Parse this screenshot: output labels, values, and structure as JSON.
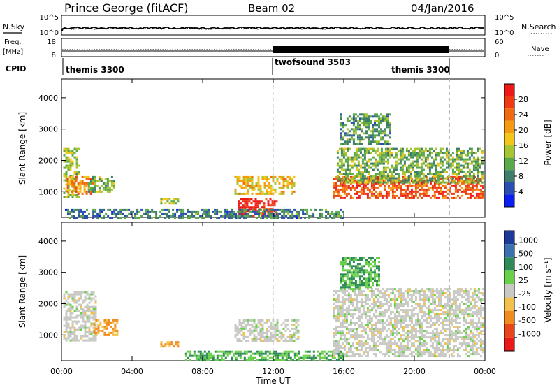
{
  "header": {
    "station": "Prince George (fitACF)",
    "beam": "Beam 02",
    "date": "04/Jan/2016"
  },
  "top_panels": {
    "nsky_label": "N.Sky",
    "nsearch_label": "N.Search",
    "noise_ticks": [
      "10^5",
      "10^0"
    ],
    "freq_label_1": "Freq.",
    "freq_label_2": "[MHz]",
    "freq_ticks": [
      "18",
      "8"
    ],
    "nave_label": "Nave",
    "nave_ticks": [
      "60",
      "0"
    ],
    "cpid_label": "CPID",
    "cpid_segments": [
      {
        "name": "themis 3300",
        "start_hour": 0,
        "end_hour": 12
      },
      {
        "name": "twofsound 3503",
        "start_hour": 12,
        "end_hour": 22
      },
      {
        "name": "themis 3300",
        "start_hour": 22,
        "end_hour": 24
      }
    ]
  },
  "time_axis": {
    "title": "Time UT",
    "ticks": [
      "00:00",
      "04:00",
      "08:00",
      "12:00",
      "16:00",
      "20:00",
      "00:00"
    ]
  },
  "range_axis": {
    "title": "Slant Range [km]",
    "ticks": [
      "1000",
      "2000",
      "3000",
      "4000"
    ]
  },
  "power_scale": {
    "title": "Power [dB]",
    "labels": [
      "4",
      "8",
      "12",
      "16",
      "20",
      "24",
      "28"
    ],
    "colors": [
      "#0a1ef0",
      "#2a4fb0",
      "#3e7d6a",
      "#59a84a",
      "#a9c431",
      "#f3c61c",
      "#f59a13",
      "#f06a10",
      "#ef3a14",
      "#ee1a1a"
    ]
  },
  "velocity_scale": {
    "title": "Velocity [m s⁻¹]",
    "labels": [
      "1000",
      "500",
      "100",
      "25",
      "-25",
      "-100",
      "-500",
      "-1000"
    ],
    "colors": [
      "#1d3a9a",
      "#3a6fb0",
      "#2e8b57",
      "#6ad04a",
      "#c8c8c4",
      "#f1c14b",
      "#f08c1e",
      "#e8451b",
      "#e81a1a"
    ]
  },
  "chart_data": [
    {
      "type": "heatmap",
      "title": "Power",
      "xlabel": "Time UT",
      "ylabel": "Slant Range [km]",
      "xlim": [
        0,
        24
      ],
      "ylim": [
        180,
        4600
      ],
      "zlabel": "Power [dB]",
      "zlim": [
        0,
        32
      ],
      "regions": [
        {
          "t0": 0.1,
          "t1": 1.0,
          "r0": 800,
          "r1": 2400,
          "power": 14
        },
        {
          "t0": 0.3,
          "t1": 1.8,
          "r0": 900,
          "r1": 1500,
          "power": 22
        },
        {
          "t0": 1.5,
          "t1": 3.0,
          "r0": 1000,
          "r1": 1500,
          "power": 12
        },
        {
          "t0": 5.6,
          "t1": 6.6,
          "r0": 600,
          "r1": 800,
          "power": 14
        },
        {
          "t0": 9.8,
          "t1": 13.2,
          "r0": 900,
          "r1": 1500,
          "power": 18
        },
        {
          "t0": 10.0,
          "t1": 12.2,
          "r0": 200,
          "r1": 800,
          "power": 30
        },
        {
          "t0": 0.2,
          "t1": 16.0,
          "r0": 180,
          "r1": 450,
          "power": 8
        },
        {
          "t0": 15.4,
          "t1": 23.9,
          "r0": 800,
          "r1": 1500,
          "power": 26
        },
        {
          "t0": 15.6,
          "t1": 23.9,
          "r0": 1300,
          "r1": 2400,
          "power": 12
        },
        {
          "t0": 15.8,
          "t1": 18.6,
          "r0": 2500,
          "r1": 3500,
          "power": 10
        }
      ]
    },
    {
      "type": "heatmap",
      "title": "Velocity",
      "xlabel": "Time UT",
      "ylabel": "Slant Range [km]",
      "xlim": [
        0,
        24
      ],
      "ylim": [
        180,
        4600
      ],
      "zlabel": "Velocity [m s⁻¹]",
      "zlim": [
        -1000,
        1000
      ],
      "regions": [
        {
          "t0": 0.1,
          "t1": 2.0,
          "r0": 800,
          "r1": 2400,
          "velocity": 0
        },
        {
          "t0": 1.8,
          "t1": 3.2,
          "r0": 1000,
          "r1": 1500,
          "velocity": -100
        },
        {
          "t0": 5.6,
          "t1": 6.6,
          "r0": 600,
          "r1": 800,
          "velocity": -100
        },
        {
          "t0": 9.8,
          "t1": 13.4,
          "r0": 800,
          "r1": 1500,
          "velocity": 0
        },
        {
          "t0": 7.0,
          "t1": 16.0,
          "r0": 180,
          "r1": 500,
          "velocity": 100
        },
        {
          "t0": 15.4,
          "t1": 23.9,
          "r0": 300,
          "r1": 2500,
          "velocity": 0
        },
        {
          "t0": 15.8,
          "t1": 18.0,
          "r0": 2500,
          "r1": 3500,
          "velocity": 100
        }
      ]
    }
  ]
}
